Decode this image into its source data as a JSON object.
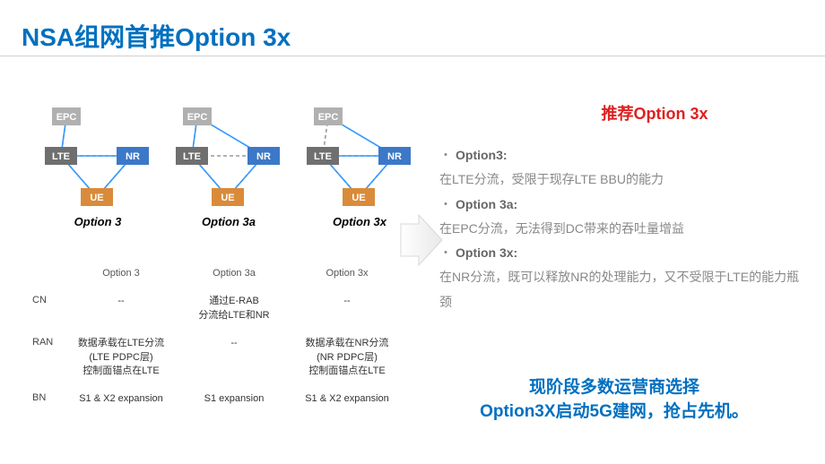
{
  "title": "NSA组网首推Option 3x",
  "diagrams": {
    "box_colors": {
      "EPC": {
        "fill": "#b0b0b0",
        "text": "#ffffff"
      },
      "LTE": {
        "fill": "#6f6f6f",
        "text": "#ffffff"
      },
      "NR": {
        "fill": "#3c78c8",
        "text": "#ffffff"
      },
      "UE": {
        "fill": "#d98b3a",
        "text": "#ffffff"
      }
    },
    "dash_color": "#999999",
    "solid_color_blue": "#3399ff",
    "items": [
      {
        "label": "Option 3",
        "split_at": "LTE"
      },
      {
        "label": "Option 3a",
        "split_at": "EPC"
      },
      {
        "label": "Option 3x",
        "split_at": "NR"
      }
    ]
  },
  "table": {
    "columns": [
      "Option 3",
      "Option 3a",
      "Option 3x"
    ],
    "rows": [
      {
        "label": "CN",
        "cells": [
          "--",
          "通过E-RAB\n分流给LTE和NR",
          "--"
        ]
      },
      {
        "label": "RAN",
        "cells": [
          "数据承载在LTE分流\n(LTE PDPC层)\n控制面锚点在LTE",
          "--",
          "数据承载在NR分流\n(NR PDPC层)\n控制面锚点在LTE"
        ]
      },
      {
        "label": "BN",
        "cells": [
          "S1 & X2  expansion",
          "S1 expansion",
          "S1 & X2  expansion"
        ]
      }
    ]
  },
  "right": {
    "title": "推荐Option 3x",
    "items": [
      {
        "k": "Option3:",
        "v": "在LTE分流，受限于现存LTE BBU的能力"
      },
      {
        "k": "Option 3a:",
        "v": "在EPC分流，无法得到DC带来的吞吐量增益"
      },
      {
        "k": "Option 3x:",
        "v": "在NR分流，既可以释放NR的处理能力，又不受限于LTE的能力瓶颈"
      }
    ]
  },
  "bottom_note": "现阶段多数运营商选择\nOption3X启动5G建网，抢占先机。",
  "arrow": {
    "fill": "#f0f0f0",
    "stroke": "#d8d8d8"
  }
}
